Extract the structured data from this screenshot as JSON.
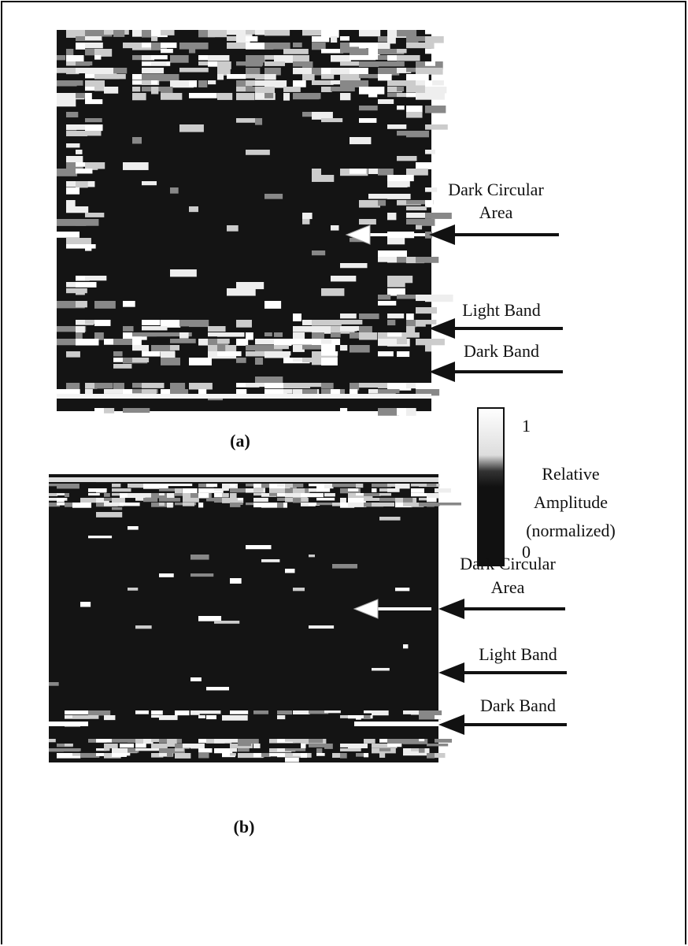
{
  "panels": [
    {
      "label": "(a)",
      "annotations": [
        {
          "lines": [
            "Dark Circular",
            "Area"
          ]
        },
        {
          "lines": [
            "Light Band"
          ]
        },
        {
          "lines": [
            "Dark Band"
          ]
        }
      ]
    },
    {
      "label": "(b)",
      "annotations": [
        {
          "lines": [
            "Dark Circular",
            "Area"
          ]
        },
        {
          "lines": [
            "Light Band"
          ]
        },
        {
          "lines": [
            "Dark Band"
          ]
        }
      ]
    }
  ],
  "colorbar": {
    "max_label": "1",
    "min_label": "0",
    "title_lines": [
      "Relative",
      "Amplitude",
      "(normalized)"
    ]
  }
}
